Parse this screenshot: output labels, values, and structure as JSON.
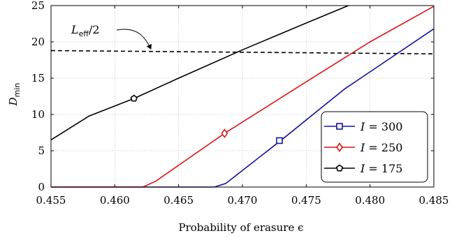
{
  "chart_data": {
    "type": "line",
    "xlabel": "Probability of erasure ϵ",
    "ylabel_main": "D",
    "ylabel_sub": "min",
    "xlim": [
      0.455,
      0.485
    ],
    "ylim": [
      0,
      25
    ],
    "x_ticks": [
      0.455,
      0.46,
      0.465,
      0.47,
      0.475,
      0.48,
      0.485
    ],
    "x_tick_labels": [
      "0.455",
      "0.460",
      "0.465",
      "0.470",
      "0.475",
      "0.480",
      "0.485"
    ],
    "y_ticks": [
      0,
      5,
      10,
      15,
      20,
      25
    ],
    "y_tick_labels": [
      "0",
      "5",
      "10",
      "15",
      "20",
      "25"
    ],
    "grid": true,
    "legend_position": "bottom-right",
    "series": [
      {
        "name": "I = 300",
        "legend_var": "I",
        "legend_value": "= 300",
        "color": "#1414a0",
        "marker": "square",
        "marker_point": [
          0.4729,
          6.4
        ],
        "points": [
          [
            0.455,
            0
          ],
          [
            0.4678,
            0
          ],
          [
            0.4687,
            0.5
          ],
          [
            0.473,
            6.4
          ],
          [
            0.478,
            13.5
          ],
          [
            0.485,
            21.8
          ]
        ]
      },
      {
        "name": "I = 250",
        "legend_var": "I",
        "legend_value": "= 250",
        "color": "#dc1414",
        "marker": "diamond",
        "marker_point": [
          0.4686,
          7.4
        ],
        "points": [
          [
            0.455,
            0
          ],
          [
            0.4622,
            0
          ],
          [
            0.4632,
            0.8
          ],
          [
            0.4686,
            7.4
          ],
          [
            0.475,
            14.5
          ],
          [
            0.48,
            20.0
          ],
          [
            0.485,
            24.9
          ]
        ]
      },
      {
        "name": "I = 175",
        "legend_var": "I",
        "legend_value": "= 175",
        "color": "#000000",
        "marker": "pentagon",
        "marker_point": [
          0.4615,
          12.2
        ],
        "points": [
          [
            0.455,
            6.5
          ],
          [
            0.458,
            9.8
          ],
          [
            0.4615,
            12.2
          ],
          [
            0.465,
            15.0
          ],
          [
            0.47,
            18.9
          ],
          [
            0.475,
            22.6
          ],
          [
            0.4783,
            25.0
          ]
        ]
      }
    ],
    "reference_line": {
      "label_main": "L",
      "label_sub": "eff",
      "label_tail": "/2",
      "style": "dashed",
      "color": "#000000",
      "points": [
        [
          0.455,
          18.8
        ],
        [
          0.485,
          18.35
        ]
      ]
    }
  }
}
